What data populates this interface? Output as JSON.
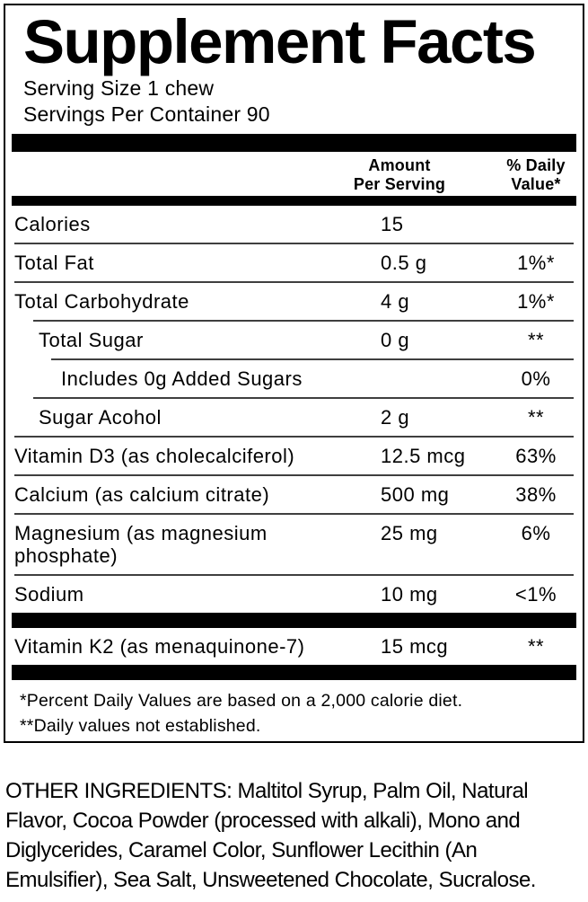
{
  "supplement_facts": {
    "title": "Supplement Facts",
    "serving_size": "Serving Size 1 chew",
    "servings_per_container": "Servings Per Container 90",
    "columns": {
      "amount_line1": "Amount",
      "amount_line2": "Per Serving",
      "dv_line1": "% Daily",
      "dv_line2": "Value*"
    },
    "rows": [
      {
        "label": "Calories",
        "amount": "15",
        "dv": "",
        "indent": 0
      },
      {
        "label": "Total Fat",
        "amount": "0.5 g",
        "dv": "1%*",
        "indent": 0
      },
      {
        "label": "Total Carbohydrate",
        "amount": "4 g",
        "dv": "1%*",
        "indent": 0
      },
      {
        "label": "Total Sugar",
        "amount": "0 g",
        "dv": "**",
        "indent": 1
      },
      {
        "label": "Includes 0g Added Sugars",
        "amount": "",
        "dv": "0%",
        "indent": 2
      },
      {
        "label": "Sugar Acohol",
        "amount": "2 g",
        "dv": "**",
        "indent": 1
      },
      {
        "label": "Vitamin D3 (as cholecalciferol)",
        "amount": "12.5 mcg",
        "dv": "63%",
        "indent": 0
      },
      {
        "label": "Calcium (as calcium citrate)",
        "amount": "500 mg",
        "dv": "38%",
        "indent": 0
      },
      {
        "label": "Magnesium (as magnesium phosphate)",
        "amount": "25 mg",
        "dv": "6%",
        "indent": 0
      },
      {
        "label": "Sodium",
        "amount": "10 mg",
        "dv": "<1%",
        "indent": 0,
        "bar_after": true
      },
      {
        "label": "Vitamin K2 (as menaquinone-7)",
        "amount": "15 mcg",
        "dv": "**",
        "indent": 0,
        "bar_after": true
      }
    ],
    "footnotes": [
      "*Percent Daily Values are based on a 2,000 calorie diet.",
      "**Daily values not established."
    ]
  },
  "other_ingredients": {
    "lines": [
      "OTHER INGREDIENTS: Maltitol Syrup, Palm Oil, Natural",
      "Flavor, Cocoa Powder (processed with alkali), Mono and",
      "Diglycerides, Caramel Color, Sunflower Lecithin (An",
      "Emulsifier), Sea Salt, Unsweetened Chocolate, Sucralose."
    ]
  },
  "colors": {
    "text": "#000000",
    "background": "#ffffff",
    "bar": "#000000",
    "divider": "#3f3f3f"
  }
}
